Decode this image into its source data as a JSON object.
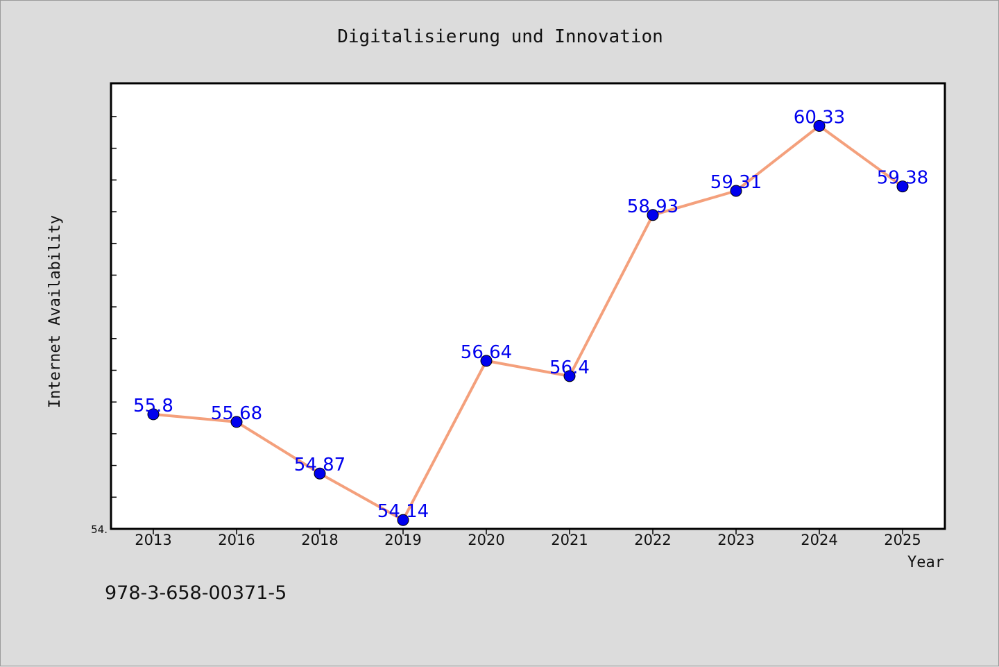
{
  "chart_data": {
    "type": "line",
    "title": "Digitalisierung und Innovation",
    "xlabel": "Year",
    "ylabel": "Internet Availability",
    "categories": [
      "2013",
      "2016",
      "2018",
      "2019",
      "2020",
      "2021",
      "2022",
      "2023",
      "2024",
      "2025"
    ],
    "series": [
      {
        "values": [
          55.8,
          55.68,
          54.87,
          54.14,
          56.64,
          56.4,
          58.93,
          59.31,
          60.33,
          59.38
        ],
        "data_labels": [
          "55.8",
          "55.68",
          "54.87",
          "54.14",
          "56.64",
          "56.4",
          "58.93",
          "59.31",
          "60.33",
          "59.38"
        ]
      }
    ],
    "ylim": [
      54.0,
      61.0
    ],
    "y_tick_labels": [
      "54."
    ],
    "grid": false,
    "colors": {
      "line": "#f4a07c",
      "marker": "#0000ee",
      "label": "#0000ee",
      "plot_bg": "#ffffff",
      "page_bg": "#dcdcdc"
    }
  },
  "footnote": "978-3-658-00371-5"
}
